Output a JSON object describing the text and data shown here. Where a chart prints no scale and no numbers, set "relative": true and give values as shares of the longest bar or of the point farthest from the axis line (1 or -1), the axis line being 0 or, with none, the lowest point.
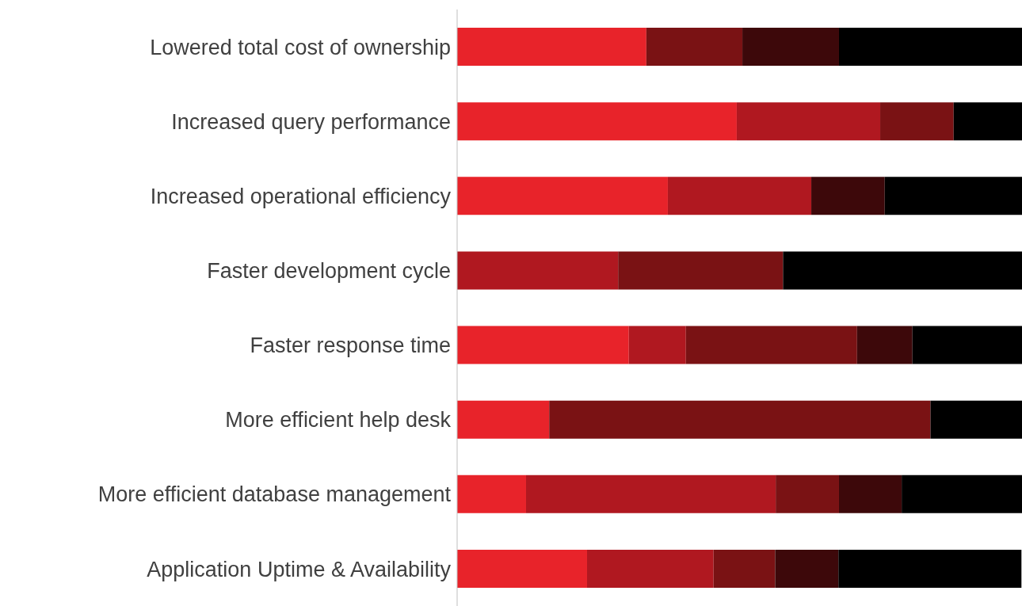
{
  "chart_data": {
    "type": "bar",
    "orientation": "horizontal",
    "stacked": true,
    "relative": true,
    "grid": false,
    "legend": false,
    "categories": [
      "Lowered total cost of ownership",
      "Increased query performance",
      "Increased operational efficiency",
      "Faster development cycle",
      "Faster response time",
      "More efficient help desk",
      "More efficient database management",
      "Application Uptime & Availability"
    ],
    "series": [
      {
        "color": "#e8232a",
        "values": [
          0.335,
          0.495,
          0.373,
          null,
          0.304,
          0.163,
          0.122,
          0.23
        ]
      },
      {
        "color": "#b01820",
        "values": [
          null,
          0.254,
          0.254,
          0.285,
          0.101,
          null,
          0.442,
          0.224
        ]
      },
      {
        "color": "#7a1214",
        "values": [
          0.17,
          0.13,
          null,
          0.292,
          0.303,
          0.675,
          0.112,
          0.109
        ]
      },
      {
        "color": "#3d080a",
        "values": [
          0.171,
          null,
          0.13,
          null,
          0.098,
          null,
          0.111,
          0.112
        ]
      },
      {
        "color": "#000000",
        "values": [
          0.324,
          0.121,
          0.243,
          0.423,
          0.194,
          0.162,
          0.213,
          0.324
        ]
      }
    ]
  }
}
